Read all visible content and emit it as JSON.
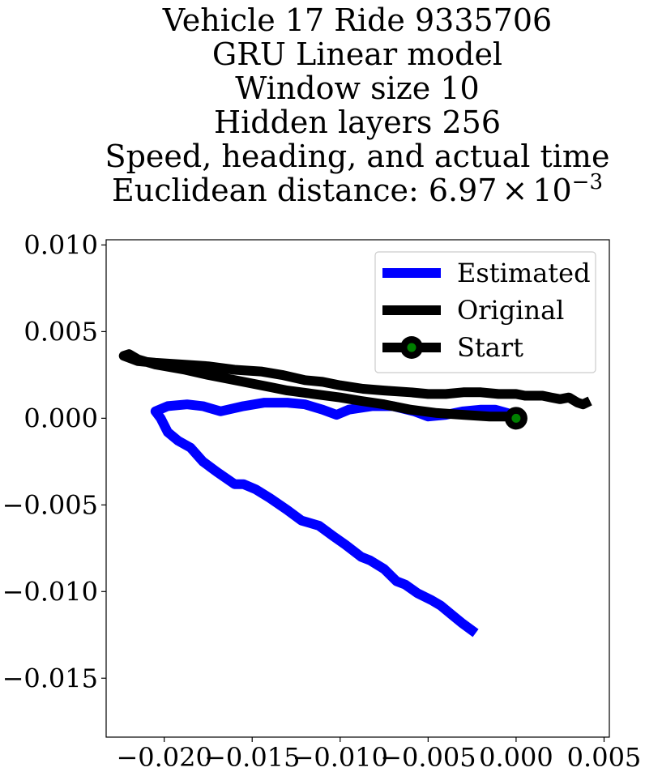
{
  "chart_data": {
    "type": "line",
    "title": {
      "lines": [
        "Vehicle 17 Ride 9335706",
        "GRU Linear model",
        "Window size 10",
        "Hidden layers 256",
        "Speed, heading, and actual time"
      ],
      "distance_prefix": "Euclidean distance: ",
      "distance_mantissa": "6.97",
      "distance_times": "×",
      "distance_base": "10",
      "distance_exponent": "−3"
    },
    "xlabel": "",
    "ylabel": "",
    "xlim": [
      -0.0233,
      0.0053
    ],
    "ylim": [
      -0.0184,
      0.0103
    ],
    "xticks": [
      {
        "value": -0.02,
        "label": "−0.020"
      },
      {
        "value": -0.015,
        "label": "−0.015"
      },
      {
        "value": -0.01,
        "label": "−0.010"
      },
      {
        "value": -0.005,
        "label": "−0.005"
      },
      {
        "value": 0.0,
        "label": "0.000"
      },
      {
        "value": 0.005,
        "label": "0.005"
      }
    ],
    "yticks": [
      {
        "value": 0.01,
        "label": "0.010"
      },
      {
        "value": 0.005,
        "label": "0.005"
      },
      {
        "value": 0.0,
        "label": "0.000"
      },
      {
        "value": -0.005,
        "label": "−0.005"
      },
      {
        "value": -0.01,
        "label": "−0.010"
      },
      {
        "value": -0.015,
        "label": "−0.015"
      }
    ],
    "grid": false,
    "legend_position": "top-right",
    "series": [
      {
        "name": "Estimated",
        "color": "#0000ff",
        "x": [
          0.0,
          -0.0005,
          -0.0012,
          -0.002,
          -0.003,
          -0.004,
          -0.005,
          -0.0058,
          -0.007,
          -0.0082,
          -0.0095,
          -0.0102,
          -0.011,
          -0.012,
          -0.013,
          -0.0143,
          -0.0155,
          -0.0168,
          -0.0178,
          -0.0187,
          -0.0198,
          -0.0205,
          -0.0202,
          -0.0198,
          -0.0192,
          -0.0185,
          -0.0178,
          -0.017,
          -0.016,
          -0.0155,
          -0.0148,
          -0.014,
          -0.013,
          -0.0122,
          -0.0112,
          -0.0104,
          -0.0097,
          -0.0088,
          -0.0083,
          -0.0075,
          -0.0068,
          -0.0063,
          -0.0056,
          -0.0048,
          -0.0043,
          -0.0037,
          -0.0031,
          -0.0023
        ],
        "y": [
          0.0,
          0.0003,
          0.0005,
          0.0005,
          0.0004,
          0.0002,
          0.0001,
          0.0004,
          0.0007,
          0.0007,
          0.0005,
          0.0002,
          0.0005,
          0.0008,
          0.0009,
          0.0009,
          0.0007,
          0.0004,
          0.0007,
          0.0008,
          0.0007,
          0.0004,
          0.0,
          -0.0008,
          -0.0013,
          -0.0017,
          -0.0025,
          -0.0031,
          -0.0038,
          -0.0038,
          -0.0041,
          -0.0046,
          -0.0053,
          -0.0059,
          -0.0062,
          -0.0068,
          -0.0073,
          -0.008,
          -0.0082,
          -0.0087,
          -0.0094,
          -0.0096,
          -0.0101,
          -0.0105,
          -0.0108,
          -0.0113,
          -0.0118,
          -0.0124
        ]
      },
      {
        "name": "Original",
        "color": "#000000",
        "x": [
          0.0,
          -0.0015,
          -0.003,
          -0.0045,
          -0.006,
          -0.0075,
          -0.0088,
          -0.01,
          -0.0115,
          -0.013,
          -0.014,
          -0.0155,
          -0.0165,
          -0.0175,
          -0.0188,
          -0.0205,
          -0.0215,
          -0.022,
          -0.0223,
          -0.0215,
          -0.0205,
          -0.019,
          -0.0175,
          -0.016,
          -0.0145,
          -0.0133,
          -0.012,
          -0.011,
          -0.01,
          -0.0087,
          -0.0075,
          -0.006,
          -0.005,
          -0.004,
          -0.003,
          -0.002,
          -0.001,
          0.0,
          0.0005,
          0.0015,
          0.002,
          0.0025,
          0.003,
          0.0035,
          0.0038,
          0.0042
        ],
        "y": [
          0.0001,
          0.0001,
          0.0002,
          0.0003,
          0.0005,
          0.0008,
          0.001,
          0.0012,
          0.0014,
          0.0016,
          0.0018,
          0.0021,
          0.0023,
          0.0025,
          0.0028,
          0.0031,
          0.0034,
          0.0037,
          0.0036,
          0.0033,
          0.0032,
          0.0031,
          0.003,
          0.0028,
          0.0027,
          0.0025,
          0.0022,
          0.0021,
          0.0019,
          0.0017,
          0.0016,
          0.0015,
          0.0014,
          0.0014,
          0.0015,
          0.0015,
          0.0014,
          0.0014,
          0.0013,
          0.0013,
          0.0012,
          0.0011,
          0.0012,
          0.0009,
          0.0008,
          0.001
        ]
      }
    ],
    "start_point": {
      "name": "Start",
      "x": 0.0,
      "y": 0.0,
      "line_color": "#000000",
      "marker_color": "#008000"
    }
  }
}
